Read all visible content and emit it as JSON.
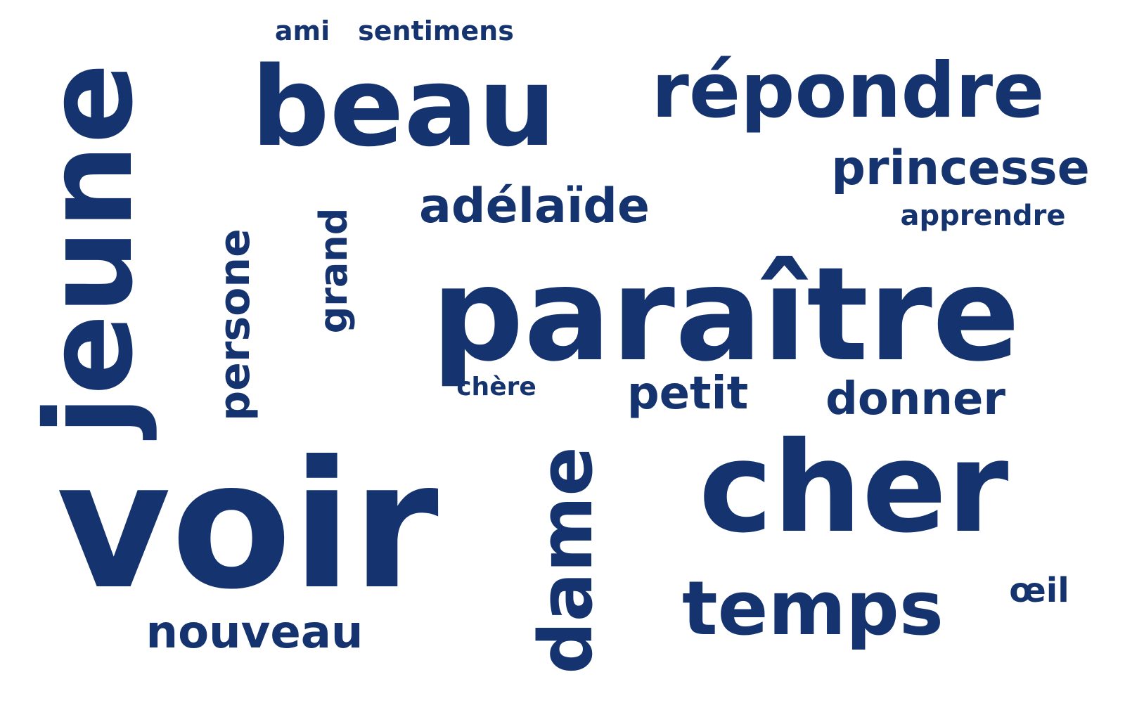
{
  "color": "#14336f",
  "words": {
    "voir": "voir",
    "jeune": "jeune",
    "paraitre": "paraître",
    "beau": "beau",
    "cher": "cher",
    "repondre": "répondre",
    "temps": "temps",
    "dame": "dame",
    "princesse": "princesse",
    "adelaide": "adélaïde",
    "nouveau": "nouveau",
    "donner": "donner",
    "petit": "petit",
    "persone": "persone",
    "grand": "grand",
    "apprendre": "apprendre",
    "oeil": "œil",
    "ami": "ami",
    "sentimens": "sentimens",
    "chere": "chère"
  }
}
